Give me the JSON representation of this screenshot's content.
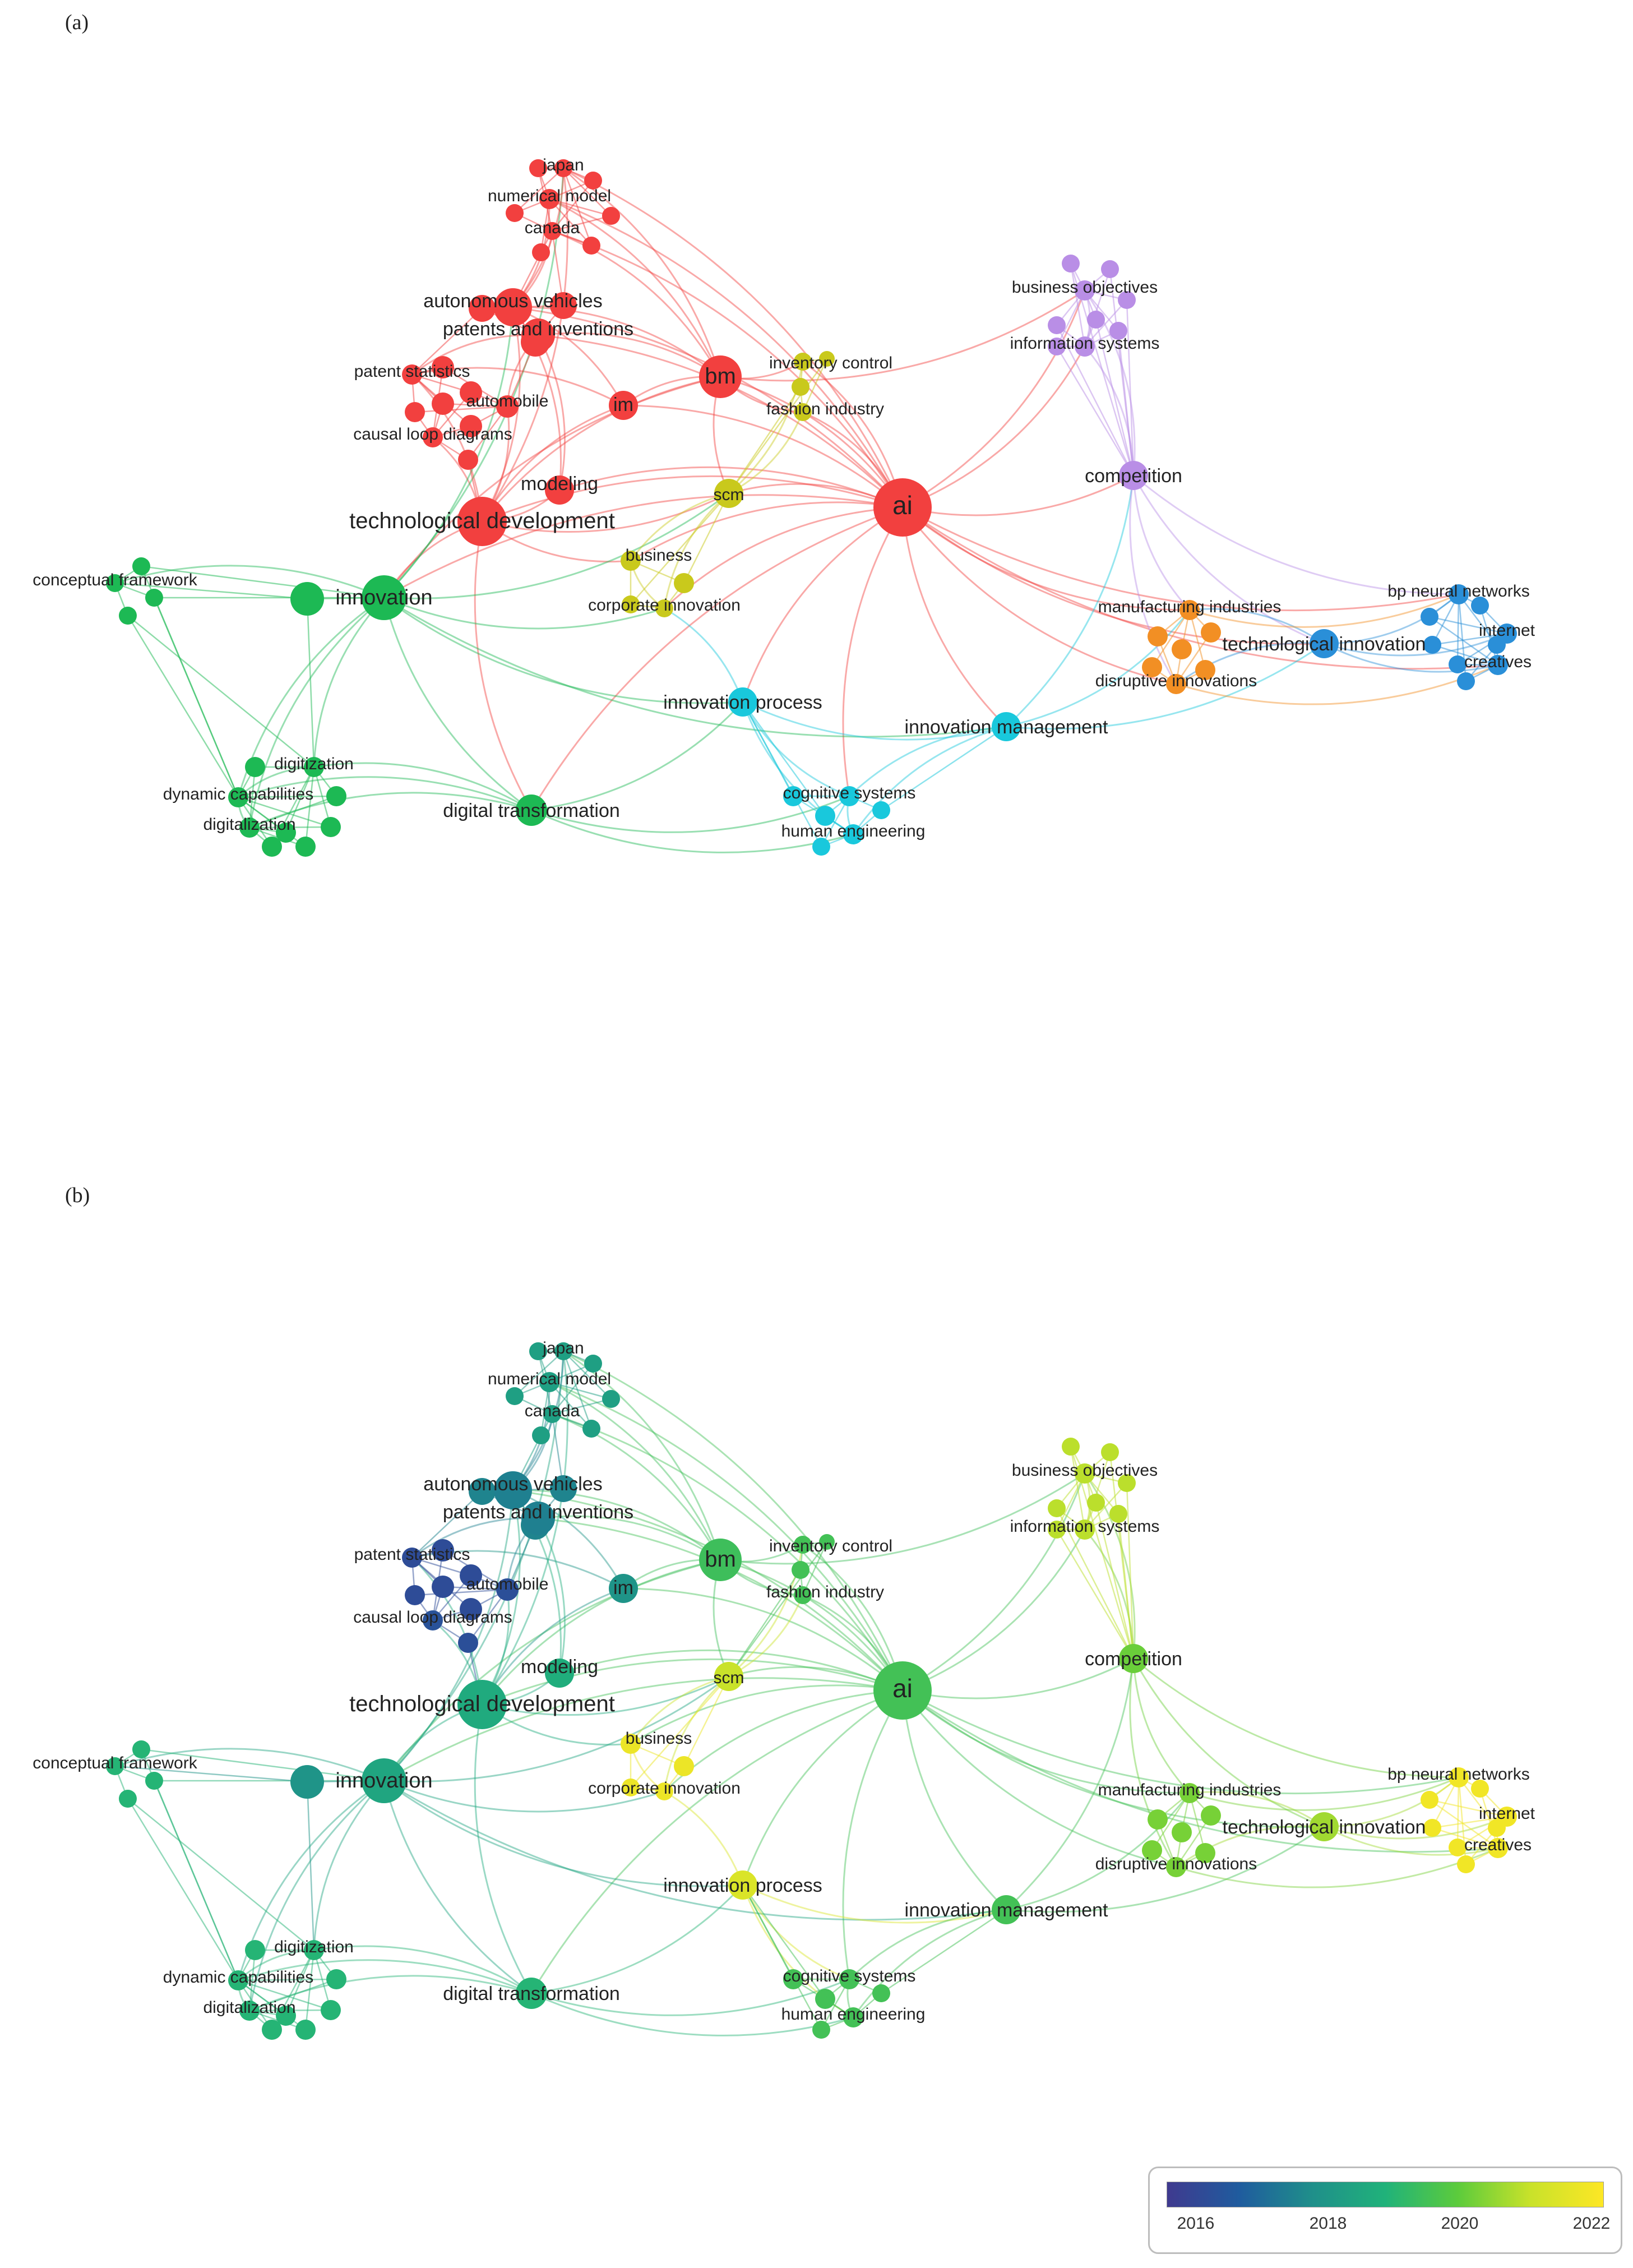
{
  "panels": [
    {
      "letter": "(a)",
      "mode": "cluster"
    },
    {
      "letter": "(b)",
      "mode": "year"
    }
  ],
  "labels": {
    "japan": "japan",
    "numerical_model": "numerical model",
    "canada": "canada",
    "autonomous_vehicles": "autonomous vehicles",
    "patents_and_inventions": "patents and inventions",
    "patent_statistics": "patent statistics",
    "automobile": "automobile",
    "im": "im",
    "bm": "bm",
    "inventory_control": "inventory control",
    "fashion_industry": "fashion industry",
    "causal_loop_diagrams": "causal loop diagrams",
    "modeling": "modeling",
    "scm": "scm",
    "ai": "ai",
    "technological_development": "technological development",
    "business_objectives": "business objectives",
    "information_systems": "information systems",
    "competition": "competition",
    "conceptual_framework": "conceptual framework",
    "innovation": "innovation",
    "business": "business",
    "corporate_innovation": "corporate innovation",
    "manufacturing_industries": "manufacturing industries",
    "technological_innovation": "technological innovation",
    "disruptive_innovations": "disruptive innovations",
    "bp_neural_networks": "bp neural networks",
    "internet": "internet",
    "creatives": "creatives",
    "innovation_process": "innovation process",
    "innovation_management": "innovation management",
    "digitization": "digitization",
    "dynamic_capabilities": "dynamic capabilities",
    "digitalization": "digitalization",
    "digital_transformation": "digital transformation",
    "cognitive_systems": "cognitive systems",
    "human_engineering": "human engineering"
  },
  "clusters": {
    "red": "#f2403f",
    "green": "#1db954",
    "yellow": "#c9c91c",
    "purple": "#b98ee6",
    "cyan": "#19c8dc",
    "orange": "#f28f24",
    "blue": "#2a8fd8"
  },
  "legend": {
    "ticks": [
      "2016",
      "2018",
      "2020",
      "2022"
    ],
    "min_year": 2015.5,
    "max_year": 2022.4
  }
}
